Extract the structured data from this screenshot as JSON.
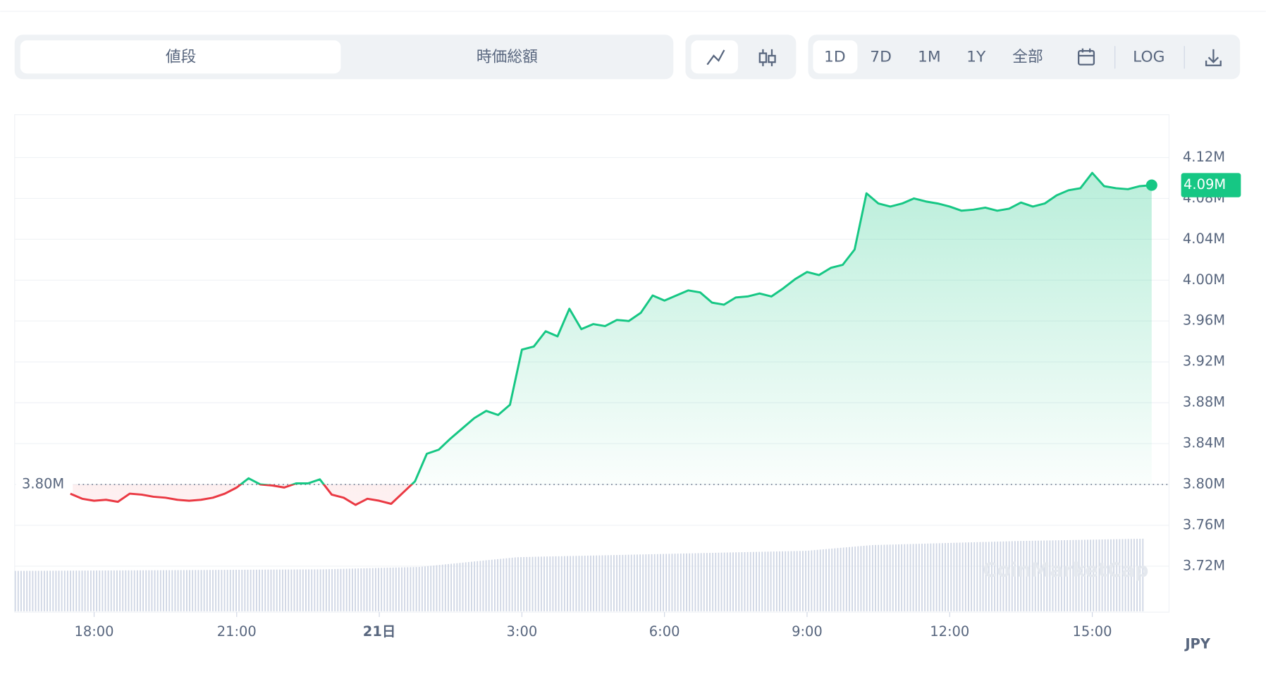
{
  "toolbar": {
    "tabs": [
      "値段",
      "時価総額"
    ],
    "ranges": [
      "1D",
      "7D",
      "1M",
      "1Y",
      "全部"
    ],
    "log": "LOG"
  },
  "chart_data": {
    "type": "line",
    "categories": [
      "17:30",
      "17:45",
      "18:00",
      "18:15",
      "18:30",
      "18:45",
      "19:00",
      "19:15",
      "19:30",
      "19:45",
      "20:00",
      "20:15",
      "20:30",
      "20:45",
      "21:00",
      "21:15",
      "21:30",
      "21:45",
      "22:00",
      "22:15",
      "22:30",
      "22:45",
      "23:00",
      "23:15",
      "23:30",
      "23:45",
      "0:00",
      "0:15",
      "0:30",
      "0:45",
      "1:00",
      "1:15",
      "1:30",
      "1:45",
      "2:00",
      "2:15",
      "2:30",
      "2:45",
      "3:00",
      "3:15",
      "3:30",
      "3:45",
      "4:00",
      "4:15",
      "4:30",
      "4:45",
      "5:00",
      "5:15",
      "5:30",
      "5:45",
      "6:00",
      "6:15",
      "6:30",
      "6:45",
      "7:00",
      "7:15",
      "7:30",
      "7:45",
      "8:00",
      "8:15",
      "8:30",
      "8:45",
      "9:00",
      "9:15",
      "9:30",
      "9:45",
      "10:00",
      "10:15",
      "10:30",
      "10:45",
      "11:00",
      "11:15",
      "11:30",
      "11:45",
      "12:00",
      "12:15",
      "12:30",
      "12:45",
      "13:00",
      "13:15",
      "13:30",
      "13:45",
      "14:00",
      "14:15",
      "14:30",
      "14:45",
      "15:00",
      "15:15",
      "15:30",
      "15:45",
      "16:00",
      "16:15"
    ],
    "values": [
      3791000,
      3786000,
      3784000,
      3785000,
      3783000,
      3791000,
      3790000,
      3788000,
      3787000,
      3785000,
      3784000,
      3785000,
      3787000,
      3791000,
      3797000,
      3806000,
      3800000,
      3799000,
      3797000,
      3801000,
      3801000,
      3805000,
      3790000,
      3787000,
      3780000,
      3786000,
      3784000,
      3781000,
      3792000,
      3803000,
      3830000,
      3834000,
      3845000,
      3855000,
      3865000,
      3872000,
      3868000,
      3878000,
      3932000,
      3935000,
      3950000,
      3945000,
      3972000,
      3952000,
      3957000,
      3955000,
      3961000,
      3960000,
      3968000,
      3985000,
      3980000,
      3985000,
      3990000,
      3988000,
      3978000,
      3976000,
      3983000,
      3984000,
      3987000,
      3984000,
      3992000,
      4001000,
      4008000,
      4005000,
      4012000,
      4015000,
      4030000,
      4085000,
      4075000,
      4072000,
      4075000,
      4080000,
      4077000,
      4075000,
      4072000,
      4068000,
      4069000,
      4071000,
      4068000,
      4070000,
      4076000,
      4072000,
      4075000,
      4083000,
      4088000,
      4090000,
      4105000,
      4092000,
      4090000,
      4089000,
      4092000,
      4093000
    ],
    "up_color": "#16c784",
    "down_color": "#ea3943",
    "reference": {
      "value": 3800000,
      "label": "3.80M"
    },
    "current": {
      "value": 4093000,
      "label": "4.09M"
    },
    "ylim": [
      3675000,
      4162000
    ],
    "yticks": [
      {
        "value": 3720000,
        "label": "3.72M"
      },
      {
        "value": 3760000,
        "label": "3.76M"
      },
      {
        "value": 3800000,
        "label": "3.80M"
      },
      {
        "value": 3840000,
        "label": "3.84M"
      },
      {
        "value": 3880000,
        "label": "3.88M"
      },
      {
        "value": 3920000,
        "label": "3.92M"
      },
      {
        "value": 3960000,
        "label": "3.96M"
      },
      {
        "value": 4000000,
        "label": "4.00M"
      },
      {
        "value": 4040000,
        "label": "4.04M"
      },
      {
        "value": 4080000,
        "label": "4.08M"
      },
      {
        "value": 4120000,
        "label": "4.12M"
      }
    ],
    "xticks": [
      "18:00",
      "21:00",
      {
        "value": "0:00",
        "label": "21日"
      },
      "3:00",
      "6:00",
      "9:00",
      "12:00",
      "15:00"
    ],
    "currency": "JPY",
    "watermark": "CoinMarketCap",
    "grid": true
  }
}
